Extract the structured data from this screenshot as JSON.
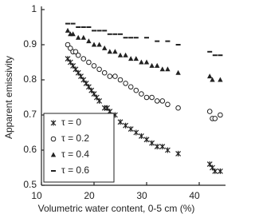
{
  "chart_data": {
    "type": "scatter",
    "x_label": "Volumetric water content, 0-5 cm (%)",
    "y_label": "Apparent emissivity",
    "xlim": [
      10,
      45
    ],
    "ylim": [
      0.5,
      1
    ],
    "xticks": [
      10,
      20,
      30,
      40
    ],
    "yticks": [
      0.5,
      0.6,
      0.7,
      0.8,
      0.9,
      1
    ],
    "legend": "lower-left",
    "series": [
      {
        "name": "τ = 0",
        "color": "#222222",
        "marker": "asterisk",
        "x": [
          15,
          15.5,
          16,
          16.5,
          17,
          17.5,
          18,
          18.5,
          19,
          19.5,
          20,
          20.5,
          21,
          22,
          22.5,
          23,
          24,
          25,
          26,
          27,
          28,
          29,
          30,
          31,
          32,
          33,
          34,
          36,
          42,
          42.5,
          43,
          44
        ],
        "values": [
          0.86,
          0.85,
          0.84,
          0.83,
          0.82,
          0.81,
          0.8,
          0.79,
          0.78,
          0.77,
          0.76,
          0.75,
          0.74,
          0.72,
          0.72,
          0.71,
          0.7,
          0.68,
          0.67,
          0.66,
          0.65,
          0.64,
          0.63,
          0.62,
          0.61,
          0.61,
          0.6,
          0.59,
          0.56,
          0.55,
          0.54,
          0.54
        ]
      },
      {
        "name": "τ = 0.2",
        "color": "#222222",
        "marker": "circle",
        "x": [
          15,
          15.5,
          16,
          16.5,
          17,
          18,
          19,
          20,
          21,
          22,
          23,
          24,
          25,
          26,
          27,
          28,
          29,
          30,
          31,
          32,
          33,
          34,
          36,
          42,
          42.5,
          43,
          44
        ],
        "values": [
          0.9,
          0.89,
          0.88,
          0.88,
          0.87,
          0.86,
          0.85,
          0.84,
          0.83,
          0.82,
          0.81,
          0.81,
          0.8,
          0.79,
          0.78,
          0.77,
          0.76,
          0.75,
          0.75,
          0.74,
          0.74,
          0.73,
          0.72,
          0.71,
          0.69,
          0.69,
          0.7
        ]
      },
      {
        "name": "τ = 0.4",
        "color": "#222222",
        "marker": "triangle",
        "x": [
          15,
          15.5,
          16,
          17,
          18,
          19,
          20,
          21,
          22,
          23,
          24,
          25,
          26,
          27,
          28,
          29,
          30,
          31,
          32,
          33,
          34,
          36,
          42,
          42.5,
          44
        ],
        "values": [
          0.94,
          0.93,
          0.93,
          0.92,
          0.92,
          0.91,
          0.9,
          0.9,
          0.89,
          0.88,
          0.88,
          0.87,
          0.87,
          0.86,
          0.86,
          0.85,
          0.85,
          0.84,
          0.84,
          0.83,
          0.83,
          0.82,
          0.81,
          0.8,
          0.8
        ]
      },
      {
        "name": "τ = 0.6",
        "color": "#222222",
        "marker": "dash",
        "x": [
          15,
          16,
          17,
          18,
          19,
          20,
          21,
          22,
          23,
          24,
          25,
          26,
          27,
          28,
          30,
          32,
          34,
          36,
          42,
          43,
          44
        ],
        "values": [
          0.96,
          0.96,
          0.95,
          0.95,
          0.95,
          0.94,
          0.94,
          0.94,
          0.93,
          0.93,
          0.93,
          0.92,
          0.92,
          0.92,
          0.92,
          0.91,
          0.91,
          0.9,
          0.88,
          0.87,
          0.87
        ]
      }
    ]
  }
}
